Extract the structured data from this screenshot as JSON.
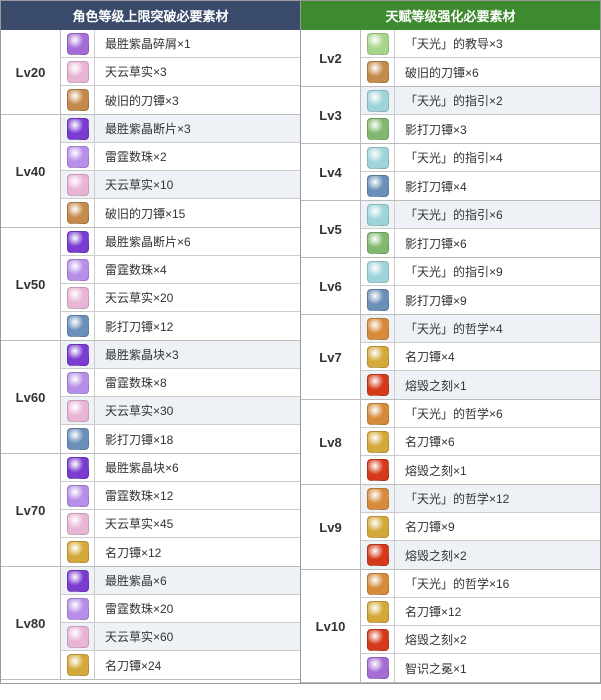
{
  "headers": {
    "left": "角色等级上限突破必要素材",
    "right": "天赋等级强化必要素材"
  },
  "icon_colors": {
    "purple_shard": "#a56bd6",
    "purple_gem": "#7a3bd1",
    "purple_crystal": "#b78fe8",
    "pink_seed": "#e9b5d6",
    "orange_scroll": "#c48a4a",
    "blue_scroll": "#6a8fb8",
    "gold_scroll": "#d4a93a",
    "teal_pot": "#9ed4d9",
    "green_book": "#a7d68a",
    "green_scroll": "#7fb86e",
    "orange_book": "#d68a3a",
    "red_burst": "#d43a1a"
  },
  "left": [
    {
      "lv": "Lv20",
      "alt": false,
      "mats": [
        {
          "icon": "purple_shard",
          "text": "最胜紫晶碎屑×1"
        },
        {
          "icon": "pink_seed",
          "text": "天云草实×3"
        },
        {
          "icon": "orange_scroll",
          "text": "破旧的刀镡×3"
        }
      ]
    },
    {
      "lv": "Lv40",
      "alt": true,
      "mats": [
        {
          "icon": "purple_gem",
          "text": "最胜紫晶断片×3"
        },
        {
          "icon": "purple_crystal",
          "text": "雷霆数珠×2"
        },
        {
          "icon": "pink_seed",
          "text": "天云草实×10"
        },
        {
          "icon": "orange_scroll",
          "text": "破旧的刀镡×15"
        }
      ]
    },
    {
      "lv": "Lv50",
      "alt": false,
      "mats": [
        {
          "icon": "purple_gem",
          "text": "最胜紫晶断片×6"
        },
        {
          "icon": "purple_crystal",
          "text": "雷霆数珠×4"
        },
        {
          "icon": "pink_seed",
          "text": "天云草实×20"
        },
        {
          "icon": "blue_scroll",
          "text": "影打刀镡×12"
        }
      ]
    },
    {
      "lv": "Lv60",
      "alt": true,
      "mats": [
        {
          "icon": "purple_gem",
          "text": "最胜紫晶块×3"
        },
        {
          "icon": "purple_crystal",
          "text": "雷霆数珠×8"
        },
        {
          "icon": "pink_seed",
          "text": "天云草实×30"
        },
        {
          "icon": "blue_scroll",
          "text": "影打刀镡×18"
        }
      ]
    },
    {
      "lv": "Lv70",
      "alt": false,
      "mats": [
        {
          "icon": "purple_gem",
          "text": "最胜紫晶块×6"
        },
        {
          "icon": "purple_crystal",
          "text": "雷霆数珠×12"
        },
        {
          "icon": "pink_seed",
          "text": "天云草实×45"
        },
        {
          "icon": "gold_scroll",
          "text": "名刀镡×12"
        }
      ]
    },
    {
      "lv": "Lv80",
      "alt": true,
      "mats": [
        {
          "icon": "purple_gem",
          "text": "最胜紫晶×6"
        },
        {
          "icon": "purple_crystal",
          "text": "雷霆数珠×20"
        },
        {
          "icon": "pink_seed",
          "text": "天云草实×60"
        },
        {
          "icon": "gold_scroll",
          "text": "名刀镡×24"
        }
      ]
    }
  ],
  "right": [
    {
      "lv": "Lv2",
      "alt": false,
      "mats": [
        {
          "icon": "green_book",
          "text": "「天光」的教导×3"
        },
        {
          "icon": "orange_scroll",
          "text": "破旧的刀镡×6"
        }
      ]
    },
    {
      "lv": "Lv3",
      "alt": true,
      "mats": [
        {
          "icon": "teal_pot",
          "text": "「天光」的指引×2"
        },
        {
          "icon": "green_scroll",
          "text": "影打刀镡×3"
        }
      ]
    },
    {
      "lv": "Lv4",
      "alt": false,
      "mats": [
        {
          "icon": "teal_pot",
          "text": "「天光」的指引×4"
        },
        {
          "icon": "blue_scroll",
          "text": "影打刀镡×4"
        }
      ]
    },
    {
      "lv": "Lv5",
      "alt": true,
      "mats": [
        {
          "icon": "teal_pot",
          "text": "「天光」的指引×6"
        },
        {
          "icon": "green_scroll",
          "text": "影打刀镡×6"
        }
      ]
    },
    {
      "lv": "Lv6",
      "alt": false,
      "mats": [
        {
          "icon": "teal_pot",
          "text": "「天光」的指引×9"
        },
        {
          "icon": "blue_scroll",
          "text": "影打刀镡×9"
        }
      ]
    },
    {
      "lv": "Lv7",
      "alt": true,
      "mats": [
        {
          "icon": "orange_book",
          "text": "「天光」的哲学×4"
        },
        {
          "icon": "gold_scroll",
          "text": "名刀镡×4"
        },
        {
          "icon": "red_burst",
          "text": "熔毁之刻×1"
        }
      ]
    },
    {
      "lv": "Lv8",
      "alt": false,
      "mats": [
        {
          "icon": "orange_book",
          "text": "「天光」的哲学×6"
        },
        {
          "icon": "gold_scroll",
          "text": "名刀镡×6"
        },
        {
          "icon": "red_burst",
          "text": "熔毁之刻×1"
        }
      ]
    },
    {
      "lv": "Lv9",
      "alt": true,
      "mats": [
        {
          "icon": "orange_book",
          "text": "「天光」的哲学×12"
        },
        {
          "icon": "gold_scroll",
          "text": "名刀镡×9"
        },
        {
          "icon": "red_burst",
          "text": "熔毁之刻×2"
        }
      ]
    },
    {
      "lv": "Lv10",
      "alt": false,
      "mats": [
        {
          "icon": "orange_book",
          "text": "「天光」的哲学×16"
        },
        {
          "icon": "gold_scroll",
          "text": "名刀镡×12"
        },
        {
          "icon": "red_burst",
          "text": "熔毁之刻×2"
        },
        {
          "icon": "purple_shard",
          "text": "智识之冕×1"
        }
      ]
    }
  ]
}
